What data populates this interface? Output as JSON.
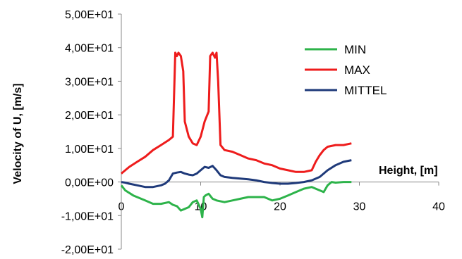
{
  "chart_data": {
    "type": "line",
    "title": "",
    "xlabel": "Height, [m]",
    "ylabel": "Velocity of U, [m/s]",
    "xlim": [
      0,
      40
    ],
    "ylim": [
      -20,
      50
    ],
    "x_ticks": [
      0,
      10,
      20,
      30,
      40
    ],
    "x_tick_labels": [
      "0",
      "10",
      "20",
      "30",
      "40"
    ],
    "y_ticks": [
      50,
      40,
      30,
      20,
      10,
      0,
      -10,
      -20
    ],
    "y_tick_labels": [
      "5,00E+01",
      "4,00E+01",
      "3,00E+01",
      "2,00E+01",
      "1,00E+01",
      "0,00E+00",
      "-1,00E+01",
      "-2,00E+01"
    ],
    "grid": false,
    "legend_position": "top-right",
    "series": [
      {
        "name": "MIN",
        "color": "#2db34a",
        "points": [
          [
            0,
            -1.0
          ],
          [
            0.5,
            -2.5
          ],
          [
            1.5,
            -4.0
          ],
          [
            3,
            -5.5
          ],
          [
            4,
            -6.5
          ],
          [
            5,
            -6.5
          ],
          [
            6,
            -6.0
          ],
          [
            6.5,
            -6.8
          ],
          [
            7,
            -7.2
          ],
          [
            7.5,
            -8.5
          ],
          [
            8,
            -8.0
          ],
          [
            8.5,
            -7.5
          ],
          [
            9,
            -6.0
          ],
          [
            9.5,
            -5.5
          ],
          [
            10,
            -8.0
          ],
          [
            10.2,
            -10.5
          ],
          [
            10.4,
            -4.5
          ],
          [
            10.6,
            -4.0
          ],
          [
            11,
            -3.5
          ],
          [
            11.5,
            -5.0
          ],
          [
            12,
            -5.5
          ],
          [
            13,
            -6.0
          ],
          [
            14,
            -5.5
          ],
          [
            15,
            -5.0
          ],
          [
            16,
            -4.5
          ],
          [
            17,
            -4.5
          ],
          [
            18,
            -4.5
          ],
          [
            18.5,
            -5.0
          ],
          [
            19,
            -5.5
          ],
          [
            20,
            -5.0
          ],
          [
            21,
            -4.0
          ],
          [
            22,
            -3.0
          ],
          [
            23,
            -2.0
          ],
          [
            24,
            -1.5
          ],
          [
            24.5,
            -2.0
          ],
          [
            25,
            -2.5
          ],
          [
            25.5,
            -3.0
          ],
          [
            26,
            -1.0
          ],
          [
            26.5,
            0.0
          ],
          [
            27,
            -0.2
          ],
          [
            28,
            0.0
          ],
          [
            29,
            0.0
          ]
        ]
      },
      {
        "name": "MAX",
        "color": "#ee1c1c",
        "points": [
          [
            0,
            2.5
          ],
          [
            0.5,
            3.5
          ],
          [
            1,
            4.5
          ],
          [
            2,
            6.0
          ],
          [
            3,
            7.5
          ],
          [
            4,
            9.5
          ],
          [
            5,
            11.0
          ],
          [
            6,
            12.5
          ],
          [
            6.5,
            13.5
          ],
          [
            6.8,
            38.5
          ],
          [
            7.0,
            37.5
          ],
          [
            7.2,
            38.5
          ],
          [
            7.5,
            37.5
          ],
          [
            7.8,
            33.0
          ],
          [
            8.0,
            18.0
          ],
          [
            8.5,
            13.5
          ],
          [
            9.0,
            11.5
          ],
          [
            9.5,
            11.0
          ],
          [
            10.0,
            13.5
          ],
          [
            10.5,
            18.0
          ],
          [
            11.0,
            21.0
          ],
          [
            11.2,
            37.5
          ],
          [
            11.5,
            38.5
          ],
          [
            11.8,
            37.0
          ],
          [
            12.0,
            38.5
          ],
          [
            12.2,
            30.0
          ],
          [
            12.5,
            11.0
          ],
          [
            13,
            9.5
          ],
          [
            14,
            9.0
          ],
          [
            15,
            8.0
          ],
          [
            16,
            7.0
          ],
          [
            17,
            6.5
          ],
          [
            18,
            5.5
          ],
          [
            19,
            5.0
          ],
          [
            20,
            4.0
          ],
          [
            21,
            3.5
          ],
          [
            22,
            3.0
          ],
          [
            23,
            3.0
          ],
          [
            24,
            3.5
          ],
          [
            24.5,
            6.0
          ],
          [
            25,
            8.0
          ],
          [
            25.5,
            9.5
          ],
          [
            26,
            10.5
          ],
          [
            27,
            11.0
          ],
          [
            28,
            11.0
          ],
          [
            29,
            11.5
          ]
        ]
      },
      {
        "name": "MITTEL",
        "color": "#1f3a7a",
        "points": [
          [
            0,
            0.0
          ],
          [
            0.5,
            -0.2
          ],
          [
            1,
            -0.5
          ],
          [
            2,
            -1.0
          ],
          [
            3,
            -1.5
          ],
          [
            4,
            -1.5
          ],
          [
            5,
            -1.0
          ],
          [
            5.5,
            -0.5
          ],
          [
            6,
            0.5
          ],
          [
            6.5,
            2.5
          ],
          [
            7,
            2.8
          ],
          [
            7.5,
            3.0
          ],
          [
            8,
            2.5
          ],
          [
            8.5,
            2.2
          ],
          [
            9,
            2.0
          ],
          [
            9.5,
            2.5
          ],
          [
            10,
            3.5
          ],
          [
            10.5,
            4.5
          ],
          [
            11,
            4.2
          ],
          [
            11.5,
            4.8
          ],
          [
            12,
            3.5
          ],
          [
            12.5,
            2.0
          ],
          [
            13,
            1.5
          ],
          [
            14,
            1.2
          ],
          [
            15,
            1.0
          ],
          [
            16,
            0.8
          ],
          [
            17,
            0.5
          ],
          [
            18,
            0.0
          ],
          [
            19,
            -0.3
          ],
          [
            20,
            -0.5
          ],
          [
            21,
            -0.5
          ],
          [
            22,
            -0.3
          ],
          [
            23,
            0.0
          ],
          [
            24,
            0.5
          ],
          [
            25,
            1.5
          ],
          [
            26,
            3.5
          ],
          [
            27,
            5.0
          ],
          [
            28,
            6.0
          ],
          [
            29,
            6.5
          ]
        ]
      }
    ]
  }
}
